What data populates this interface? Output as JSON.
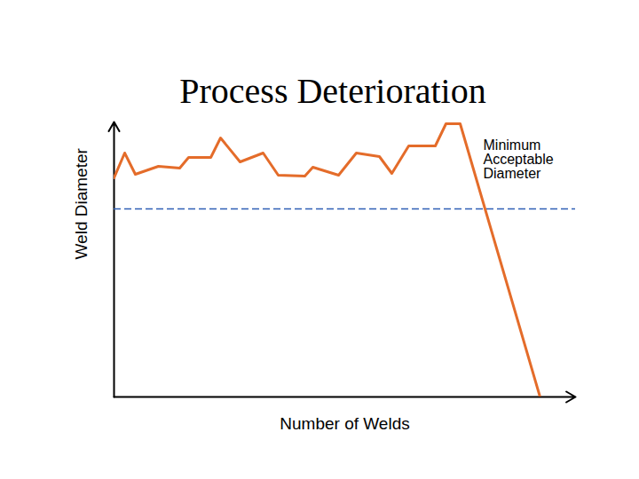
{
  "chart_data": {
    "type": "line",
    "title": "Process Deterioration",
    "xlabel": "Number of Welds",
    "ylabel": "Weld Diameter",
    "x": [
      0,
      12,
      24,
      50,
      74,
      84,
      109,
      120,
      142,
      168,
      185,
      215,
      224,
      253,
      273,
      299,
      313,
      332,
      362,
      374,
      390,
      480
    ],
    "values": [
      247,
      275,
      251,
      260,
      258,
      270,
      270,
      292,
      265,
      275,
      250,
      249,
      259,
      250,
      275,
      271,
      252,
      283,
      283,
      308,
      308,
      0
    ],
    "color": "#e46c2a",
    "xlim": [
      0,
      520
    ],
    "ylim": [
      0,
      310
    ],
    "xticks": [],
    "yticks": [],
    "tick_labels": false,
    "grid": false,
    "threshold": {
      "value": 212,
      "label": "Minimum Acceptable Diameter",
      "color": "#2f5fb5",
      "line_style": "dashed"
    }
  }
}
